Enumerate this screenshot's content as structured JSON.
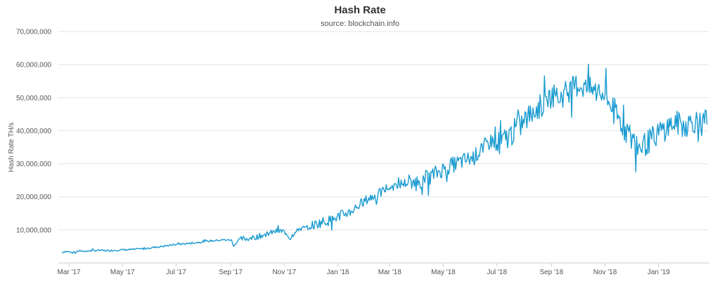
{
  "chart_data": {
    "type": "line",
    "title": "Hash Rate",
    "subtitle": "source: blockchain.info",
    "ylabel": "Hash Rate TH/s",
    "xlabel": "",
    "ylim": [
      0,
      70000000
    ],
    "xlim": [
      "2017-02-17",
      "2019-02-27"
    ],
    "grid": true,
    "legend": "none",
    "color": "#1a9bd0",
    "y_ticks": [
      {
        "value": 10000000,
        "label": "10,000,000"
      },
      {
        "value": 20000000,
        "label": "20,000,000"
      },
      {
        "value": 30000000,
        "label": "30,000,000"
      },
      {
        "value": 40000000,
        "label": "40,000,000"
      },
      {
        "value": 50000000,
        "label": "50,000,000"
      },
      {
        "value": 60000000,
        "label": "60,000,000"
      },
      {
        "value": 70000000,
        "label": "70,000,000"
      }
    ],
    "x_ticks": [
      {
        "date": "2017-03-01",
        "label": "Mar '17"
      },
      {
        "date": "2017-05-01",
        "label": "May '17"
      },
      {
        "date": "2017-07-01",
        "label": "Jul '17"
      },
      {
        "date": "2017-09-01",
        "label": "Sep '17"
      },
      {
        "date": "2017-11-01",
        "label": "Nov '17"
      },
      {
        "date": "2018-01-01",
        "label": "Jan '18"
      },
      {
        "date": "2018-03-01",
        "label": "Mar '18"
      },
      {
        "date": "2018-05-01",
        "label": "May '18"
      },
      {
        "date": "2018-07-01",
        "label": "Jul '18"
      },
      {
        "date": "2018-09-01",
        "label": "Sep '18"
      },
      {
        "date": "2018-11-01",
        "label": "Nov '18"
      },
      {
        "date": "2019-01-01",
        "label": "Jan '19"
      }
    ],
    "series": [
      {
        "points": [
          [
            "2017-02-21",
            3200000
          ],
          [
            "2017-02-25",
            3500000
          ],
          [
            "2017-03-05",
            3300000
          ],
          [
            "2017-03-15",
            3600000
          ],
          [
            "2017-03-25",
            3700000
          ],
          [
            "2017-04-05",
            3800000
          ],
          [
            "2017-04-15",
            3700000
          ],
          [
            "2017-04-25",
            3900000
          ],
          [
            "2017-05-05",
            4000000
          ],
          [
            "2017-05-15",
            4100000
          ],
          [
            "2017-05-25",
            4300000
          ],
          [
            "2017-06-05",
            4700000
          ],
          [
            "2017-06-15",
            5000000
          ],
          [
            "2017-06-25",
            5400000
          ],
          [
            "2017-07-05",
            5700000
          ],
          [
            "2017-07-15",
            5900000
          ],
          [
            "2017-07-25",
            6200000
          ],
          [
            "2017-08-05",
            6600000
          ],
          [
            "2017-08-15",
            6800000
          ],
          [
            "2017-08-25",
            7000000
          ],
          [
            "2017-09-01",
            6900000
          ],
          [
            "2017-09-05",
            5500000
          ],
          [
            "2017-09-12",
            7200000
          ],
          [
            "2017-09-25",
            7500000
          ],
          [
            "2017-10-05",
            8200000
          ],
          [
            "2017-10-15",
            9000000
          ],
          [
            "2017-10-25",
            9700000
          ],
          [
            "2017-11-01",
            9500000
          ],
          [
            "2017-11-08",
            7500000
          ],
          [
            "2017-11-15",
            10300000
          ],
          [
            "2017-11-25",
            10500000
          ],
          [
            "2017-12-05",
            11500000
          ],
          [
            "2017-12-15",
            12500000
          ],
          [
            "2017-12-25",
            13000000
          ],
          [
            "2018-01-05",
            14500000
          ],
          [
            "2018-01-15",
            15500000
          ],
          [
            "2018-01-25",
            17500000
          ],
          [
            "2018-02-05",
            19500000
          ],
          [
            "2018-02-15",
            20500000
          ],
          [
            "2018-02-25",
            22500000
          ],
          [
            "2018-03-05",
            23500000
          ],
          [
            "2018-03-15",
            24000000
          ],
          [
            "2018-03-25",
            24500000
          ],
          [
            "2018-04-05",
            25000000
          ],
          [
            "2018-04-15",
            26000000
          ],
          [
            "2018-04-25",
            27500000
          ],
          [
            "2018-05-05",
            29000000
          ],
          [
            "2018-05-15",
            30000000
          ],
          [
            "2018-05-25",
            31000000
          ],
          [
            "2018-06-05",
            32000000
          ],
          [
            "2018-06-15",
            35000000
          ],
          [
            "2018-06-25",
            37000000
          ],
          [
            "2018-07-05",
            36000000
          ],
          [
            "2018-07-15",
            38500000
          ],
          [
            "2018-07-25",
            41000000
          ],
          [
            "2018-08-05",
            44000000
          ],
          [
            "2018-08-15",
            46500000
          ],
          [
            "2018-08-25",
            48500000
          ],
          [
            "2018-09-01",
            51000000
          ],
          [
            "2018-09-10",
            50000000
          ],
          [
            "2018-09-20",
            52000000
          ],
          [
            "2018-10-01",
            54000000
          ],
          [
            "2018-10-10",
            53000000
          ],
          [
            "2018-10-20",
            52000000
          ],
          [
            "2018-11-01",
            50500000
          ],
          [
            "2018-11-10",
            47000000
          ],
          [
            "2018-11-20",
            42000000
          ],
          [
            "2018-11-30",
            38000000
          ],
          [
            "2018-12-10",
            35000000
          ],
          [
            "2018-12-20",
            36500000
          ],
          [
            "2018-12-30",
            39000000
          ],
          [
            "2019-01-10",
            41000000
          ],
          [
            "2019-01-20",
            42500000
          ],
          [
            "2019-01-30",
            41500000
          ],
          [
            "2019-02-10",
            43000000
          ],
          [
            "2019-02-20",
            42000000
          ],
          [
            "2019-02-25",
            43500000
          ]
        ],
        "noise": [
          {
            "until": "2017-09-01",
            "amplitude": 400000
          },
          {
            "until": "2017-12-01",
            "amplitude": 1200000
          },
          {
            "until": "2018-04-01",
            "amplitude": 2200000
          },
          {
            "until": "2018-07-01",
            "amplitude": 3500000
          },
          {
            "until": "2019-03-01",
            "amplitude": 5500000
          }
        ]
      }
    ]
  }
}
